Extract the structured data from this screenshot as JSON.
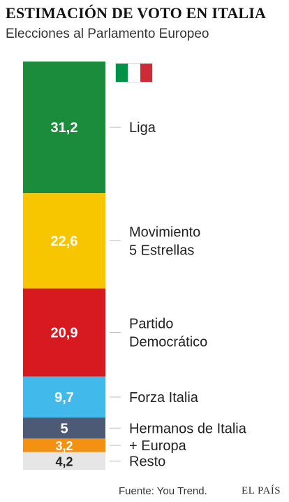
{
  "title": "ESTIMACIÓN DE VOTO EN ITALIA",
  "subtitle": "Elecciones al Parlamento Europeo",
  "flag": {
    "name": "italy-flag-icon",
    "colors": [
      "#009246",
      "#ffffff",
      "#ce2b37"
    ]
  },
  "footer": {
    "source": "Fuente: You Trend.",
    "brand": "EL PAÍS"
  },
  "chart_data": {
    "type": "bar",
    "orientation": "stacked-vertical",
    "title": "ESTIMACIÓN DE VOTO EN ITALIA",
    "subtitle": "Elecciones al Parlamento Europeo",
    "unit": "%",
    "categories": [
      "Liga",
      "Movimiento 5 Estrellas",
      "Partido Democrático",
      "Forza Italia",
      "Hermanos de Italia",
      "+ Europa",
      "Resto"
    ],
    "series": [
      {
        "values": [
          31.2,
          22.6,
          20.9,
          9.7,
          5,
          3.2,
          4.2
        ],
        "value_labels": [
          "31,2",
          "22,6",
          "20,9",
          "9,7",
          "5",
          "3,2",
          "4,2"
        ],
        "colors": [
          "#1a8c3b",
          "#f7c600",
          "#d71920",
          "#41b9ea",
          "#4d5a75",
          "#f39212",
          "#e6e6e6"
        ],
        "label_colors": [
          "#ffffff",
          "#ffffff",
          "#ffffff",
          "#ffffff",
          "#ffffff",
          "#ffffff",
          "#222222"
        ]
      }
    ],
    "segments": [
      {
        "label_lines": [
          "Liga"
        ]
      },
      {
        "label_lines": [
          "Movimiento",
          "5 Estrellas"
        ]
      },
      {
        "label_lines": [
          "Partido",
          "Democrático"
        ]
      },
      {
        "label_lines": [
          "Forza Italia"
        ]
      },
      {
        "label_lines": [
          "Hermanos de Italia"
        ]
      },
      {
        "label_lines": [
          "+ Europa"
        ]
      },
      {
        "label_lines": [
          "Resto"
        ]
      }
    ]
  }
}
